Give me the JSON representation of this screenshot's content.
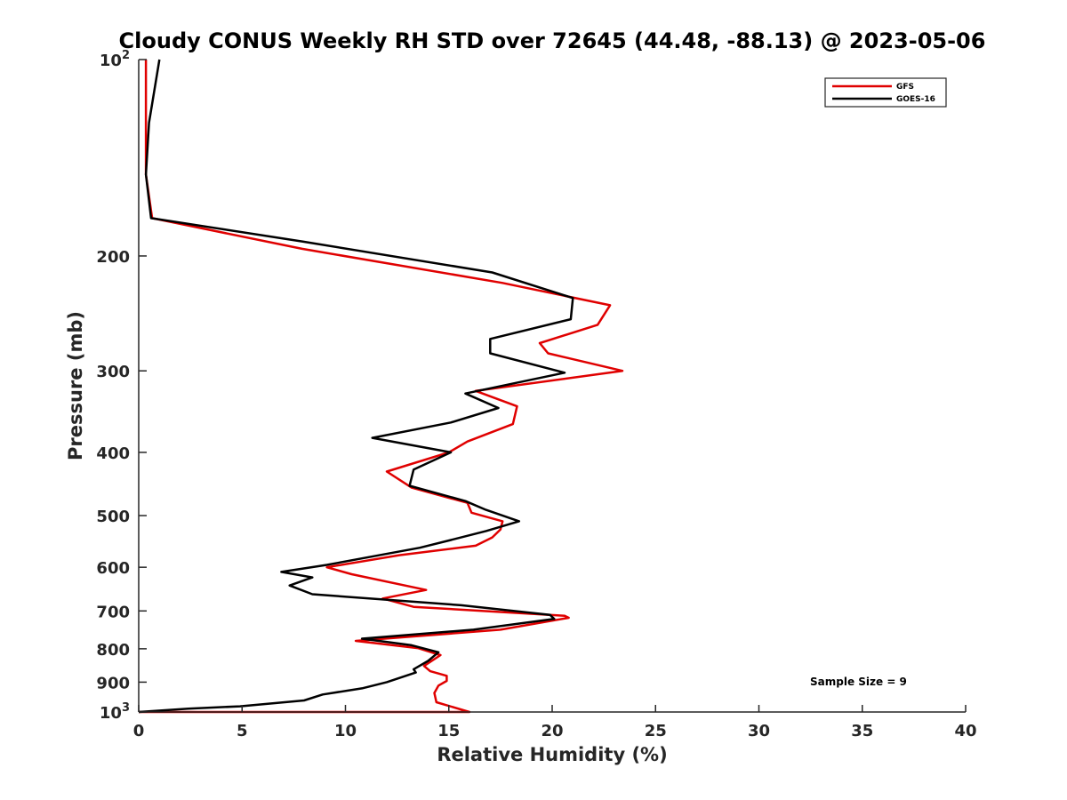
{
  "chart_data": {
    "type": "line",
    "title": "Cloudy CONUS Weekly RH STD over 72645 (44.48, -88.13) @ 2023-05-06",
    "xlabel": "Relative Humidity (%)",
    "ylabel": "Pressure (mb)",
    "xlim": [
      0,
      40
    ],
    "ylim": [
      100,
      1000
    ],
    "y_scale": "log",
    "y_reversed": true,
    "x_ticks": [
      "0",
      "5",
      "10",
      "15",
      "20",
      "25",
      "30",
      "35",
      "40"
    ],
    "x_tick_values": [
      0,
      5,
      10,
      15,
      20,
      25,
      30,
      35,
      40
    ],
    "y_ticks": [
      {
        "value": 100,
        "base": "10",
        "exp": "2"
      },
      {
        "value": 200,
        "label": "200"
      },
      {
        "value": 300,
        "label": "300"
      },
      {
        "value": 400,
        "label": "400"
      },
      {
        "value": 500,
        "label": "500"
      },
      {
        "value": 600,
        "label": "600"
      },
      {
        "value": 700,
        "label": "700"
      },
      {
        "value": 800,
        "label": "800"
      },
      {
        "value": 900,
        "label": "900"
      },
      {
        "value": 1000,
        "base": "10",
        "exp": "3"
      }
    ],
    "legend_position": "top-right",
    "series": [
      {
        "name": "GFS",
        "color": "#e00000",
        "points": [
          [
            0.35,
            100
          ],
          [
            0.35,
            125
          ],
          [
            0.35,
            150
          ],
          [
            0.65,
            175
          ],
          [
            7.9,
            195
          ],
          [
            17.6,
            220
          ],
          [
            22.8,
            238
          ],
          [
            22.2,
            255
          ],
          [
            19.4,
            272
          ],
          [
            19.8,
            282
          ],
          [
            23.4,
            300
          ],
          [
            16.3,
            322
          ],
          [
            18.3,
            340
          ],
          [
            18.1,
            362
          ],
          [
            15.9,
            385
          ],
          [
            15.0,
            400
          ],
          [
            12.0,
            428
          ],
          [
            13.2,
            453
          ],
          [
            15.9,
            478
          ],
          [
            16.1,
            495
          ],
          [
            17.6,
            510
          ],
          [
            17.5,
            525
          ],
          [
            17.1,
            540
          ],
          [
            16.3,
            556
          ],
          [
            12.6,
            575
          ],
          [
            9.1,
            600
          ],
          [
            10.3,
            615
          ],
          [
            13.9,
            650
          ],
          [
            11.8,
            670
          ],
          [
            13.3,
            690
          ],
          [
            20.6,
            712
          ],
          [
            20.8,
            717
          ],
          [
            17.5,
            748
          ],
          [
            10.5,
            778
          ],
          [
            13.5,
            798
          ],
          [
            14.6,
            818
          ],
          [
            13.8,
            850
          ],
          [
            14.1,
            866
          ],
          [
            14.9,
            880
          ],
          [
            14.9,
            896
          ],
          [
            14.5,
            911
          ],
          [
            14.3,
            935
          ],
          [
            14.4,
            966
          ],
          [
            16.0,
            1000
          ],
          [
            0.0,
            1000
          ]
        ]
      },
      {
        "name": "GOES-16",
        "color": "#000000",
        "points": [
          [
            1.0,
            100
          ],
          [
            0.5,
            125
          ],
          [
            0.35,
            150
          ],
          [
            0.6,
            175
          ],
          [
            7.9,
            190
          ],
          [
            17.1,
            212
          ],
          [
            21.0,
            232
          ],
          [
            20.9,
            250
          ],
          [
            17.0,
            268
          ],
          [
            17.0,
            282
          ],
          [
            20.6,
            302
          ],
          [
            15.8,
            325
          ],
          [
            17.4,
            342
          ],
          [
            15.1,
            360
          ],
          [
            11.3,
            380
          ],
          [
            15.1,
            400
          ],
          [
            13.3,
            425
          ],
          [
            13.1,
            450
          ],
          [
            15.8,
            475
          ],
          [
            16.8,
            490
          ],
          [
            18.4,
            510
          ],
          [
            16.8,
            528
          ],
          [
            15.1,
            545
          ],
          [
            13.6,
            560
          ],
          [
            9.1,
            595
          ],
          [
            6.9,
            610
          ],
          [
            8.4,
            622
          ],
          [
            7.3,
            640
          ],
          [
            8.4,
            660
          ],
          [
            15.6,
            686
          ],
          [
            19.9,
            710
          ],
          [
            20.1,
            720
          ],
          [
            16.2,
            748
          ],
          [
            10.8,
            772
          ],
          [
            13.2,
            790
          ],
          [
            14.5,
            810
          ],
          [
            14.0,
            835
          ],
          [
            13.3,
            860
          ],
          [
            13.4,
            870
          ],
          [
            12.0,
            900
          ],
          [
            10.8,
            920
          ],
          [
            8.9,
            940
          ],
          [
            8.0,
            960
          ],
          [
            4.9,
            980
          ],
          [
            2.4,
            988
          ],
          [
            0.0,
            1000
          ]
        ]
      }
    ],
    "annotation": "Sample Size = 9"
  }
}
